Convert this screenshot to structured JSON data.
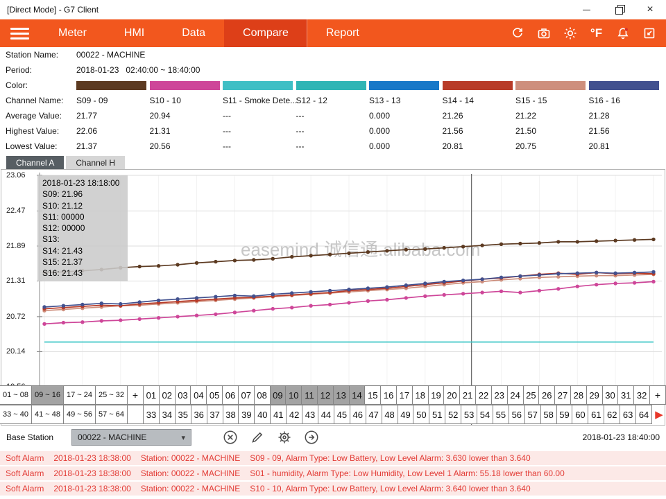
{
  "window": {
    "title": "[Direct Mode] - G7 Client"
  },
  "nav": {
    "items": [
      {
        "label": "Meter"
      },
      {
        "label": "HMI"
      },
      {
        "label": "Data"
      },
      {
        "label": "Compare",
        "active": true
      },
      {
        "label": "Report"
      }
    ],
    "fahrenheit_label": "°F",
    "accent_color": "#F2571E",
    "active_color": "#DD3F18"
  },
  "info": {
    "station_label": "Station Name:",
    "station_value": "00022 - MACHINE",
    "period_label": "Period:",
    "period_value": "2018-01-23   02:40:00 ~ 18:40:00",
    "color_label": "Color:",
    "channel_label": "Channel Name:",
    "average_label": "Average Value:",
    "highest_label": "Highest Value:",
    "lowest_label": "Lowest Value:"
  },
  "channels": [
    {
      "name": "S09 - 09",
      "color": "#5C3A21",
      "average": "21.77",
      "highest": "22.06",
      "lowest": "21.37"
    },
    {
      "name": "S10 - 10",
      "color": "#CE4699",
      "average": "20.94",
      "highest": "21.31",
      "lowest": "20.56"
    },
    {
      "name": "S11 - Smoke Dete...",
      "color": "#3FBFC5",
      "average": "---",
      "highest": "---",
      "lowest": "---"
    },
    {
      "name": "S12 - 12",
      "color": "#2EB5B5",
      "average": "---",
      "highest": "---",
      "lowest": "---"
    },
    {
      "name": "S13 - 13",
      "color": "#1878C8",
      "average": "0.000",
      "highest": "0.000",
      "lowest": "0.000"
    },
    {
      "name": "S14 - 14",
      "color": "#B83B28",
      "average": "21.26",
      "highest": "21.56",
      "lowest": "20.81"
    },
    {
      "name": "S15 - 15",
      "color": "#CE8F7D",
      "average": "21.22",
      "highest": "21.50",
      "lowest": "20.75"
    },
    {
      "name": "S16 - 16",
      "color": "#42518F",
      "average": "21.28",
      "highest": "21.56",
      "lowest": "20.81"
    }
  ],
  "tabs": [
    {
      "label": "Channel A",
      "active": true
    },
    {
      "label": "Channel H",
      "active": false
    }
  ],
  "tooltip": {
    "title": "2018-01-23 18:18:00",
    "lines": [
      "S09: 21.96",
      "S10: 21.12",
      "S11: 00000",
      "S12: 00000",
      "S13:",
      "S14: 21.43",
      "S15: 21.37",
      "S16: 21.43"
    ]
  },
  "chart_data": {
    "type": "line",
    "title": "",
    "date": "2018-01-23",
    "x_start": "02:40:00",
    "x_end": "18:40:00",
    "ylim": [
      19.56,
      23.06
    ],
    "y_ticks": [
      23.06,
      22.47,
      21.89,
      21.31,
      20.72,
      20.14,
      19.56
    ],
    "grid": true,
    "crosshair_fraction": 0.695,
    "watermark": "easemind 诚信通.alibaba.com",
    "series": [
      {
        "name": "S12",
        "color": "#3EC6C6",
        "markers": false,
        "flat_value": 20.3,
        "points": 33
      },
      {
        "name": "S10",
        "color": "#CE4699",
        "values": [
          20.6,
          20.62,
          20.63,
          20.65,
          20.66,
          20.68,
          20.7,
          20.72,
          20.74,
          20.76,
          20.79,
          20.82,
          20.85,
          20.87,
          20.9,
          20.92,
          20.95,
          20.98,
          21.0,
          21.03,
          21.06,
          21.08,
          21.1,
          21.12,
          21.14,
          21.12,
          21.15,
          21.18,
          21.22,
          21.25,
          21.27,
          21.28,
          21.3
        ]
      },
      {
        "name": "S15",
        "color": "#CE8F7D",
        "values": [
          20.82,
          20.84,
          20.86,
          20.88,
          20.9,
          20.91,
          20.93,
          20.95,
          20.97,
          20.99,
          21.01,
          21.03,
          21.05,
          21.07,
          21.09,
          21.11,
          21.13,
          21.15,
          21.17,
          21.19,
          21.22,
          21.25,
          21.28,
          21.3,
          21.33,
          21.35,
          21.37,
          21.38,
          21.39,
          21.4,
          21.4,
          21.41,
          21.42
        ]
      },
      {
        "name": "S14",
        "color": "#B83B28",
        "values": [
          20.85,
          20.87,
          20.89,
          20.91,
          20.9,
          20.93,
          20.95,
          20.97,
          20.99,
          21.01,
          21.03,
          21.04,
          21.06,
          21.08,
          21.1,
          21.12,
          21.15,
          21.17,
          21.19,
          21.22,
          21.25,
          21.28,
          21.31,
          21.34,
          21.36,
          21.39,
          21.42,
          21.44,
          21.42,
          21.45,
          21.43,
          21.44,
          21.43
        ]
      },
      {
        "name": "S16",
        "color": "#42518F",
        "values": [
          20.88,
          20.9,
          20.92,
          20.94,
          20.93,
          20.96,
          20.99,
          21.01,
          21.03,
          21.05,
          21.07,
          21.06,
          21.09,
          21.11,
          21.13,
          21.15,
          21.17,
          21.19,
          21.21,
          21.24,
          21.27,
          21.3,
          21.32,
          21.34,
          21.37,
          21.39,
          21.41,
          21.43,
          21.44,
          21.45,
          21.44,
          21.45,
          21.46
        ]
      },
      {
        "name": "S09",
        "color": "#5C3A21",
        "values": [
          21.45,
          21.46,
          21.48,
          21.5,
          21.53,
          21.55,
          21.56,
          21.58,
          21.61,
          21.63,
          21.65,
          21.66,
          21.68,
          21.71,
          21.73,
          21.75,
          21.77,
          21.79,
          21.81,
          21.83,
          21.84,
          21.86,
          21.88,
          21.9,
          21.92,
          21.93,
          21.94,
          21.96,
          21.96,
          21.97,
          21.98,
          21.99,
          22.0
        ]
      }
    ]
  },
  "channel_grid": {
    "plus_label": "+",
    "rows": [
      {
        "groups": [
          "01 ~ 08",
          "09 ~ 16",
          "17 ~ 24",
          "25 ~ 32"
        ],
        "selected_group": "09 ~ 16",
        "numbers": [
          "01",
          "02",
          "03",
          "04",
          "05",
          "06",
          "07",
          "08",
          "09",
          "10",
          "11",
          "12",
          "13",
          "14",
          "15",
          "16",
          "17",
          "18",
          "19",
          "20",
          "21",
          "22",
          "23",
          "24",
          "25",
          "26",
          "27",
          "28",
          "29",
          "30",
          "31",
          "32"
        ],
        "selected": [
          "09",
          "10",
          "11",
          "12",
          "13",
          "14"
        ]
      },
      {
        "groups": [
          "33 ~ 40",
          "41 ~ 48",
          "49 ~ 56",
          "57 ~ 64"
        ],
        "numbers": [
          "33",
          "34",
          "35",
          "36",
          "37",
          "38",
          "39",
          "40",
          "41",
          "42",
          "43",
          "44",
          "45",
          "46",
          "47",
          "48",
          "49",
          "50",
          "51",
          "52",
          "53",
          "54",
          "55",
          "56",
          "57",
          "58",
          "59",
          "60",
          "61",
          "62",
          "63",
          "64"
        ],
        "selected": []
      }
    ],
    "next_arrow": "▶"
  },
  "base_bar": {
    "label": "Base Station",
    "dropdown_value": "00022 - MACHINE",
    "timestamp": "2018-01-23 18:40:00"
  },
  "alarms": [
    {
      "label": "Soft Alarm",
      "time": "2018-01-23 18:38:00",
      "station": "Station: 00022 - MACHINE",
      "message": "S09 - 09, Alarm Type: Low Battery, Low Level Alarm: 3.630 lower than 3.640"
    },
    {
      "label": "Soft Alarm",
      "time": "2018-01-23 18:38:00",
      "station": "Station: 00022 - MACHINE",
      "message": "S01 - humidity, Alarm Type: Low Humidity, Low Level 1 Alarm: 55.18 lower than 60.00"
    },
    {
      "label": "Soft Alarm",
      "time": "2018-01-23 18:38:00",
      "station": "Station: 00022 - MACHINE",
      "message": "S10 - 10, Alarm Type: Low Battery, Low Level Alarm: 3.640 lower than 3.640"
    }
  ]
}
